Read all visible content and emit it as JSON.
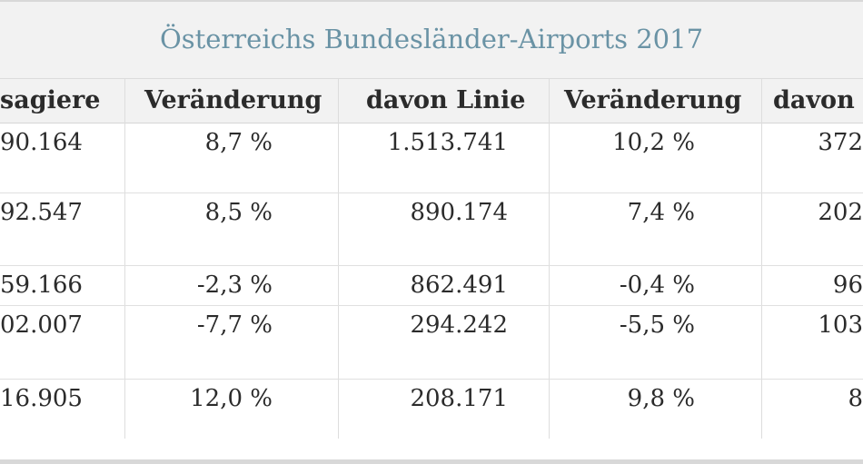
{
  "title": "Österreichs Bundesländer-Airports 2017",
  "headers": [
    "sagiere",
    "Veränderung",
    "davon Linie",
    "Veränderung",
    "davon"
  ],
  "rows": [
    [
      "90.164",
      "8,7 %",
      "1.513.741",
      "10,2 %",
      "372"
    ],
    [
      "92.547",
      "8,5 %",
      "890.174",
      "7,4 %",
      "202"
    ],
    [
      "59.166",
      "-2,3 %",
      "862.491",
      "-0,4 %",
      "96"
    ],
    [
      "02.007",
      "-7,7 %",
      "294.242",
      "-5,5 %",
      "103"
    ],
    [
      "16.905",
      "12,0 %",
      "208.171",
      "9,8 %",
      "8"
    ]
  ]
}
